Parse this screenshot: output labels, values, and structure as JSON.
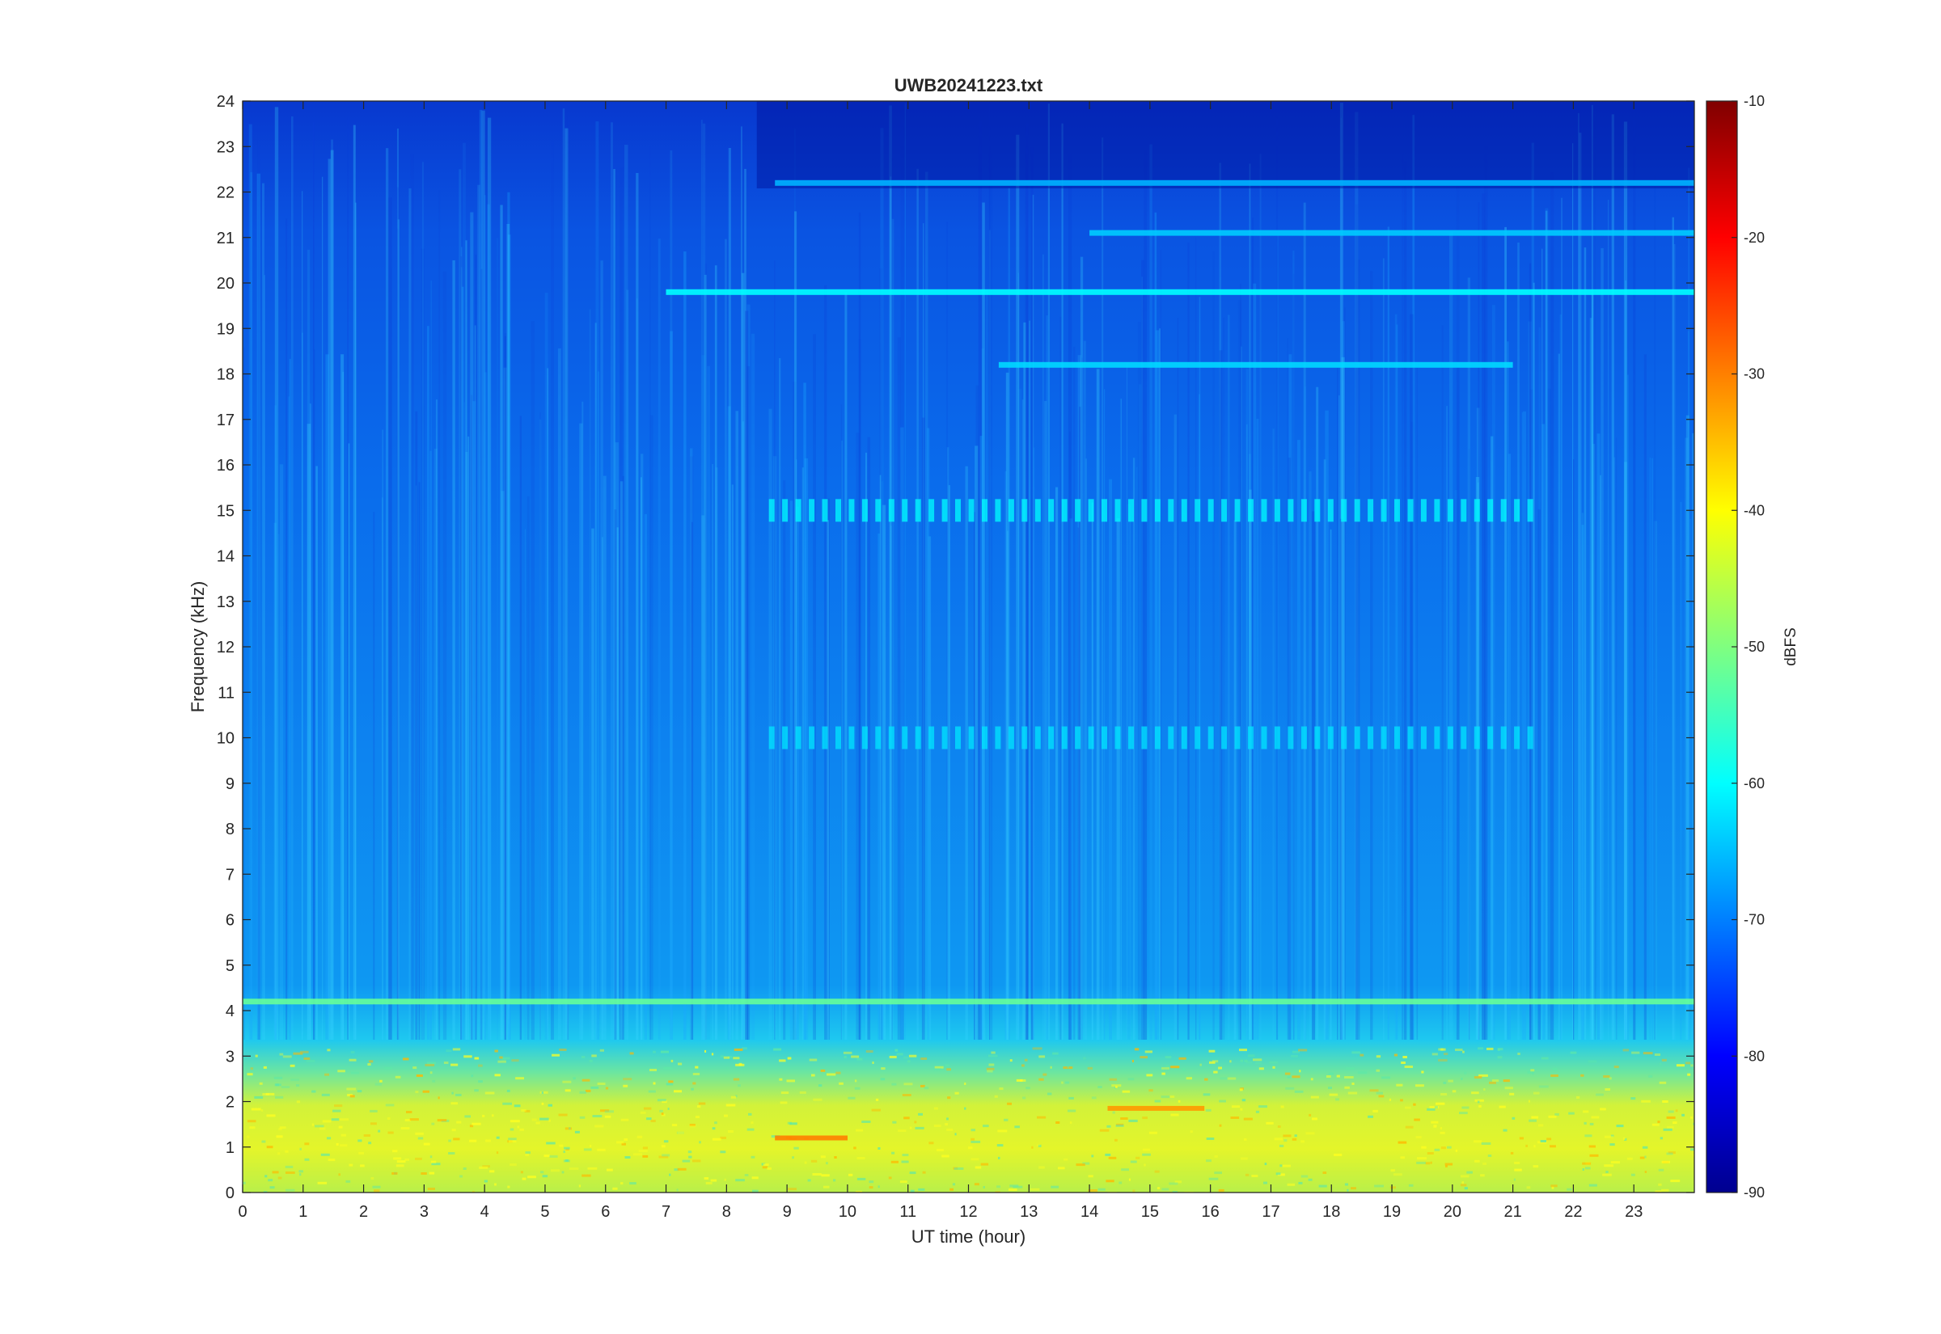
{
  "chart_data": {
    "type": "heatmap",
    "title": "UWB20241223.txt",
    "xlabel": "UT time (hour)",
    "ylabel": "Frequency (kHz)",
    "xlim": [
      0,
      24
    ],
    "ylim": [
      0,
      24
    ],
    "x_ticks": [
      "0",
      "1",
      "2",
      "3",
      "4",
      "5",
      "6",
      "7",
      "8",
      "9",
      "10",
      "11",
      "12",
      "13",
      "14",
      "15",
      "16",
      "17",
      "18",
      "19",
      "20",
      "21",
      "22",
      "23"
    ],
    "y_ticks": [
      "0",
      "1",
      "2",
      "3",
      "4",
      "5",
      "6",
      "7",
      "8",
      "9",
      "10",
      "11",
      "12",
      "13",
      "14",
      "15",
      "16",
      "17",
      "18",
      "19",
      "20",
      "21",
      "22",
      "23",
      "24"
    ],
    "colorbar": {
      "label": "dBFS",
      "range": [
        -90,
        -10
      ],
      "ticks": [
        "-10",
        "-20",
        "-30",
        "-40",
        "-50",
        "-60",
        "-70",
        "-80",
        "-90"
      ],
      "colormap": "jet"
    },
    "grid": false,
    "notable_features": [
      {
        "kind": "band",
        "freq_khz": 19.8,
        "t_start_hour": 7.0,
        "t_end_hour": 24,
        "level_dbfs": -60
      },
      {
        "kind": "band",
        "freq_khz": 18.2,
        "t_start_hour": 12.5,
        "t_end_hour": 21,
        "level_dbfs": -63
      },
      {
        "kind": "band",
        "freq_khz": 21.1,
        "t_start_hour": 14.0,
        "t_end_hour": 24,
        "level_dbfs": -64
      },
      {
        "kind": "band",
        "freq_khz": 22.2,
        "t_start_hour": 8.8,
        "t_end_hour": 24,
        "level_dbfs": -66
      },
      {
        "kind": "band",
        "freq_khz": 4.2,
        "t_start_hour": 0,
        "t_end_hour": 24,
        "level_dbfs": -52
      },
      {
        "kind": "pulse_train",
        "freq_khz": 15.0,
        "t_start_hour": 8.7,
        "t_end_hour": 21.3,
        "level_dbfs": -60
      },
      {
        "kind": "pulse_train",
        "freq_khz": 10.0,
        "t_start_hour": 8.7,
        "t_end_hour": 21.3,
        "level_dbfs": -62
      },
      {
        "kind": "strong_band",
        "freq_khz": 1.2,
        "t_start_hour": 8.8,
        "t_end_hour": 10.0,
        "level_dbfs": -30
      },
      {
        "kind": "strong_band",
        "freq_khz": 1.85,
        "t_start_hour": 14.3,
        "t_end_hour": 15.9,
        "level_dbfs": -32
      }
    ]
  }
}
